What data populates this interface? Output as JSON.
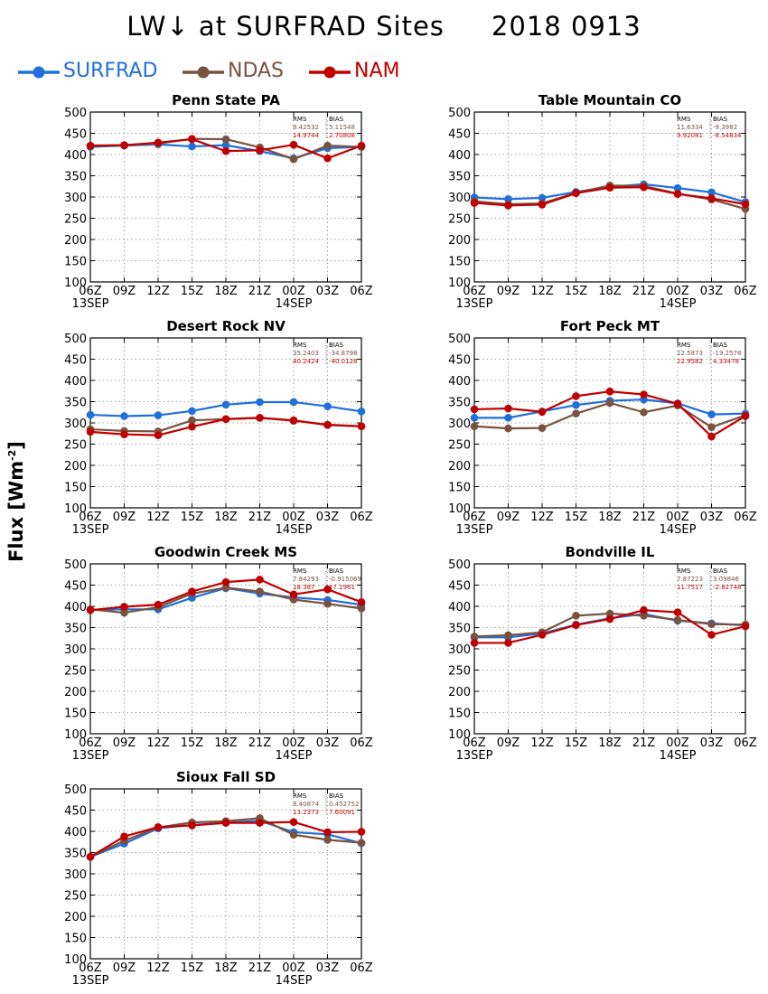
{
  "page": {
    "title_left": "LW↓ at SURFRAD Sites",
    "title_right": "2018 0913",
    "ylabel_main": "Flux [Wm",
    "ylabel_sup": "-2",
    "ylabel_end": "]"
  },
  "legend": [
    {
      "name": "SURFRAD",
      "color": "#1f6fdc"
    },
    {
      "name": "NDAS",
      "color": "#7a5240"
    },
    {
      "name": "NAM",
      "color": "#c00000"
    }
  ],
  "chart_data": [
    {
      "type": "line",
      "title": "Penn State PA",
      "x": [
        "06Z",
        "09Z",
        "12Z",
        "15Z",
        "18Z",
        "21Z",
        "00Z",
        "03Z",
        "06Z"
      ],
      "date_labels": [
        "13SEP",
        "14SEP"
      ],
      "ylim": [
        100,
        500
      ],
      "yticks": [
        "100",
        "150",
        "200",
        "250",
        "300",
        "350",
        "400",
        "450",
        "500"
      ],
      "grid": true,
      "stats": {
        "rms_label": "RMS",
        "bias_label": "BIAS",
        "ndas_rms": "8.42532",
        "ndas_bias": "5.11548",
        "nam_rms": "14.9744",
        "nam_bias": "2.70808"
      },
      "series": [
        {
          "name": "SURFRAD",
          "values": [
            418,
            421,
            424,
            419,
            422,
            408,
            391,
            415,
            418
          ]
        },
        {
          "name": "NDAS",
          "values": [
            420,
            422,
            426,
            437,
            436,
            417,
            389,
            421,
            418
          ]
        },
        {
          "name": "NAM",
          "values": [
            421,
            422,
            428,
            436,
            408,
            410,
            423,
            391,
            421
          ]
        }
      ]
    },
    {
      "type": "line",
      "title": "Table Mountain CO",
      "x": [
        "06Z",
        "09Z",
        "12Z",
        "15Z",
        "18Z",
        "21Z",
        "00Z",
        "03Z",
        "06Z"
      ],
      "date_labels": [
        "13SEP",
        "14SEP"
      ],
      "ylim": [
        100,
        500
      ],
      "yticks": [
        "100",
        "150",
        "200",
        "250",
        "300",
        "350",
        "400",
        "450",
        "500"
      ],
      "grid": true,
      "stats": {
        "rms_label": "RMS",
        "bias_label": "BIAS",
        "ndas_rms": "11.6334",
        "ndas_bias": "-9.3982",
        "nam_rms": "9.92081",
        "nam_bias": "-8.54834"
      },
      "series": [
        {
          "name": "SURFRAD",
          "values": [
            299,
            295,
            298,
            312,
            324,
            330,
            321,
            311,
            288
          ]
        },
        {
          "name": "NDAS",
          "values": [
            290,
            283,
            285,
            310,
            327,
            326,
            308,
            294,
            272
          ]
        },
        {
          "name": "NAM",
          "values": [
            286,
            280,
            282,
            309,
            322,
            323,
            307,
            297,
            283
          ]
        }
      ]
    },
    {
      "type": "line",
      "title": "Desert Rock NV",
      "x": [
        "06Z",
        "09Z",
        "12Z",
        "15Z",
        "18Z",
        "21Z",
        "00Z",
        "03Z",
        "06Z"
      ],
      "date_labels": [
        "13SEP",
        "14SEP"
      ],
      "ylim": [
        100,
        500
      ],
      "yticks": [
        "100",
        "150",
        "200",
        "250",
        "300",
        "350",
        "400",
        "450",
        "500"
      ],
      "grid": true,
      "stats": {
        "rms_label": "RMS",
        "bias_label": "BIAS",
        "ndas_rms": "35.2403",
        "ndas_bias": "-34.8798",
        "nam_rms": "40.2424",
        "nam_bias": "-40.0128"
      },
      "series": [
        {
          "name": "SURFRAD",
          "values": [
            319,
            316,
            318,
            328,
            343,
            349,
            349,
            339,
            327
          ]
        },
        {
          "name": "NDAS",
          "values": [
            285,
            281,
            280,
            306,
            309,
            312,
            305,
            296,
            292
          ]
        },
        {
          "name": "NAM",
          "values": [
            279,
            273,
            271,
            291,
            309,
            312,
            306,
            295,
            292
          ]
        }
      ]
    },
    {
      "type": "line",
      "title": "Fort Peck MT",
      "x": [
        "06Z",
        "09Z",
        "12Z",
        "15Z",
        "18Z",
        "21Z",
        "00Z",
        "03Z",
        "06Z"
      ],
      "date_labels": [
        "13SEP",
        "14SEP"
      ],
      "ylim": [
        100,
        500
      ],
      "yticks": [
        "100",
        "150",
        "200",
        "250",
        "300",
        "350",
        "400",
        "450",
        "500"
      ],
      "grid": true,
      "stats": {
        "rms_label": "RMS",
        "bias_label": "BIAS",
        "ndas_rms": "22.5873",
        "ndas_bias": "-19.2578",
        "nam_rms": "22.9582",
        "nam_bias": "4.33478"
      },
      "series": [
        {
          "name": "SURFRAD",
          "values": [
            312,
            312,
            327,
            342,
            352,
            355,
            346,
            320,
            322
          ]
        },
        {
          "name": "NDAS",
          "values": [
            292,
            287,
            288,
            322,
            347,
            325,
            341,
            290,
            318
          ]
        },
        {
          "name": "NAM",
          "values": [
            332,
            334,
            326,
            363,
            374,
            367,
            345,
            268,
            316
          ]
        }
      ]
    },
    {
      "type": "line",
      "title": "Goodwin Creek MS",
      "x": [
        "06Z",
        "09Z",
        "12Z",
        "15Z",
        "18Z",
        "21Z",
        "00Z",
        "03Z",
        "06Z"
      ],
      "date_labels": [
        "13SEP",
        "14SEP"
      ],
      "ylim": [
        100,
        500
      ],
      "yticks": [
        "100",
        "150",
        "200",
        "250",
        "300",
        "350",
        "400",
        "450",
        "500"
      ],
      "grid": true,
      "stats": {
        "rms_label": "RMS",
        "bias_label": "BIAS",
        "ndas_rms": "7.84293",
        "ndas_bias": "-0.915069",
        "nam_rms": "18.387",
        "nam_bias": "17.1961"
      },
      "series": [
        {
          "name": "SURFRAD",
          "values": [
            392,
            393,
            393,
            420,
            443,
            430,
            421,
            415,
            404
          ]
        },
        {
          "name": "NDAS",
          "values": [
            393,
            385,
            398,
            430,
            444,
            435,
            416,
            406,
            395
          ]
        },
        {
          "name": "NAM",
          "values": [
            391,
            399,
            404,
            435,
            457,
            463,
            428,
            440,
            410
          ]
        }
      ]
    },
    {
      "type": "line",
      "title": "Bondville IL",
      "x": [
        "06Z",
        "09Z",
        "12Z",
        "15Z",
        "18Z",
        "21Z",
        "00Z",
        "03Z",
        "06Z"
      ],
      "date_labels": [
        "13SEP",
        "14SEP"
      ],
      "ylim": [
        100,
        500
      ],
      "yticks": [
        "100",
        "150",
        "200",
        "250",
        "300",
        "350",
        "400",
        "450",
        "500"
      ],
      "grid": true,
      "stats": {
        "rms_label": "RMS",
        "bias_label": "BIAS",
        "ndas_rms": "7.87223",
        "ndas_bias": "3.09846",
        "nam_rms": "11.7517",
        "nam_bias": "-2.82748"
      },
      "series": [
        {
          "name": "SURFRAD",
          "values": [
            327,
            327,
            336,
            357,
            372,
            382,
            366,
            360,
            355
          ]
        },
        {
          "name": "NDAS",
          "values": [
            329,
            332,
            339,
            378,
            383,
            378,
            368,
            358,
            357
          ]
        },
        {
          "name": "NAM",
          "values": [
            314,
            314,
            333,
            356,
            370,
            391,
            386,
            333,
            353
          ]
        }
      ]
    },
    {
      "type": "line",
      "title": "Sioux Fall SD",
      "x": [
        "06Z",
        "09Z",
        "12Z",
        "15Z",
        "18Z",
        "21Z",
        "00Z",
        "03Z",
        "06Z"
      ],
      "date_labels": [
        "13SEP",
        "14SEP"
      ],
      "ylim": [
        100,
        500
      ],
      "yticks": [
        "100",
        "150",
        "200",
        "250",
        "300",
        "350",
        "400",
        "450",
        "500"
      ],
      "grid": true,
      "stats": {
        "rms_label": "RMS",
        "bias_label": "BIAS",
        "ndas_rms": "8.40874",
        "ndas_bias": "0.452752",
        "nam_rms": "13.2373",
        "nam_bias": "7.60091"
      },
      "series": [
        {
          "name": "SURFRAD",
          "values": [
            340,
            371,
            407,
            415,
            420,
            425,
            398,
            393,
            372
          ]
        },
        {
          "name": "NDAS",
          "values": [
            340,
            378,
            409,
            421,
            424,
            431,
            392,
            380,
            373
          ]
        },
        {
          "name": "NAM",
          "values": [
            340,
            388,
            410,
            414,
            420,
            420,
            422,
            398,
            399
          ]
        }
      ]
    }
  ]
}
